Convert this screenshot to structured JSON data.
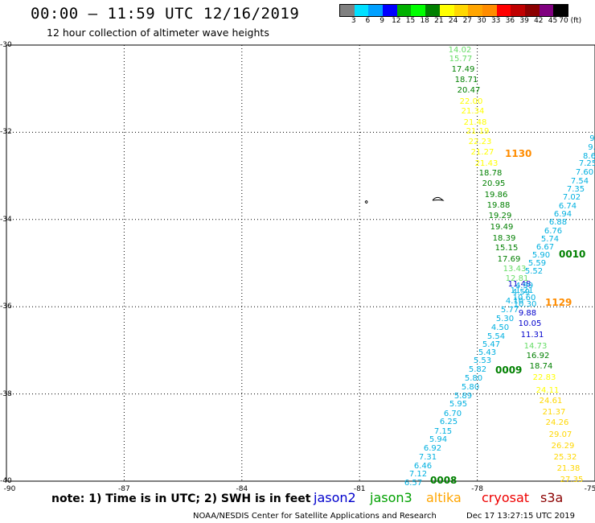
{
  "header": {
    "title": "00:00 – 11:59 UTC 12/16/2019",
    "subtitle": "12 hour collection of altimeter wave heights"
  },
  "colorbar": {
    "colors": [
      "#808080",
      "#00e0ff",
      "#00a0ff",
      "#0000ff",
      "#00b000",
      "#00ff00",
      "#008000",
      "#ffff00",
      "#ffd700",
      "#ffa500",
      "#ff8c00",
      "#ff0000",
      "#c00000",
      "#8b0000",
      "#800080",
      "#000000"
    ],
    "labels": [
      "3",
      "6",
      "9",
      "12",
      "15",
      "18",
      "21",
      "24",
      "27",
      "30",
      "33",
      "36",
      "39",
      "42",
      "45",
      "70 (ft)"
    ]
  },
  "axes": {
    "lat_labels": [
      "-30",
      "-32",
      "-34",
      "-36",
      "-38",
      "-40"
    ],
    "lon_labels": [
      "-90",
      "-87",
      "-84",
      "-81",
      "-78",
      "-75"
    ]
  },
  "tracks": [
    {
      "satellite": "jason3",
      "color": "#66dd66",
      "values": [
        "14.02",
        "15.77"
      ]
    },
    {
      "satellite": "jason3",
      "color": "#008000",
      "values": [
        "17.49",
        "18.71",
        "20.47"
      ]
    },
    {
      "satellite": "altika",
      "color": "#ffff00",
      "values": [
        "22.00",
        "21.34",
        "21.48",
        "21.19",
        "22.23",
        "21.27",
        "21.43"
      ]
    },
    {
      "satellite": "jason3",
      "color": "#008000",
      "values": [
        "18.78",
        "20.95",
        "19.86",
        "19.88",
        "19.29",
        "19.49",
        "18.39",
        "15.15",
        "17.69"
      ]
    },
    {
      "satellite": "jason3",
      "color": "#66dd66",
      "values": [
        "13.43",
        "12.81"
      ]
    },
    {
      "satellite": "jason2",
      "color": "#0000cc",
      "values": [
        "11.48"
      ]
    },
    {
      "satellite": "jason2",
      "color": "#00b0e0",
      "values": [
        "11.21",
        "10.60",
        "10.30"
      ]
    },
    {
      "satellite": "jason2",
      "color": "#0000cc",
      "values": [
        "9.88",
        "10.05",
        "11.31"
      ]
    },
    {
      "satellite": "jason3",
      "color": "#66dd66",
      "values": [
        "14.73"
      ]
    },
    {
      "satellite": "jason3",
      "color": "#008000",
      "values": [
        "16.92",
        "18.74"
      ]
    },
    {
      "satellite": "altika",
      "color": "#ffff00",
      "values": [
        "22.83",
        "24.11"
      ]
    },
    {
      "satellite": "altika",
      "color": "#ffd700",
      "values": [
        "24.61",
        "21.37",
        "24.26",
        "29.07",
        "26.29",
        "25.32",
        "21.38",
        "27.35"
      ]
    }
  ],
  "track_b": [
    "9.",
    "9.",
    "8.6",
    "7.25",
    "7.60",
    "7.54",
    "7.35",
    "7.02",
    "6.74",
    "6.94",
    "6.88",
    "6.76",
    "5.74",
    "6.67",
    "5.90",
    "5.59",
    "5.52"
  ],
  "track_c": [
    "4.99",
    "4.59",
    "4.10",
    "5.77",
    "5.30",
    "4.50",
    "5.54",
    "5.47",
    "5.43",
    "5.53",
    "5.82",
    "5.80",
    "5.80",
    "5.89",
    "5.95",
    "6.70",
    "6.25",
    "7.15",
    "5.94",
    "6.92",
    "7.31",
    "6.46",
    "7.12",
    "6.57"
  ],
  "times": [
    {
      "label": "1130",
      "color": "#ff8c00"
    },
    {
      "label": "0010",
      "color": "#008000"
    },
    {
      "label": "1129",
      "color": "#ff8c00"
    },
    {
      "label": "0009",
      "color": "#008000"
    },
    {
      "label": "0008",
      "color": "#008000"
    }
  ],
  "footer": {
    "note": "note: 1) Time is in UTC; 2) SWH is in feet",
    "sats": [
      {
        "name": "jason2",
        "color": "#0000cc"
      },
      {
        "name": "jason3",
        "color": "#00a000"
      },
      {
        "name": "altika",
        "color": "#ffa500"
      },
      {
        "name": "cryosat",
        "color": "#ee0000"
      },
      {
        "name": "s3a",
        "color": "#8b0000"
      }
    ],
    "credit": "NOAA/NESDIS Center for Satellite Applications and Research",
    "stamp": "Dec 17 13:27:15 UTC 2019"
  }
}
